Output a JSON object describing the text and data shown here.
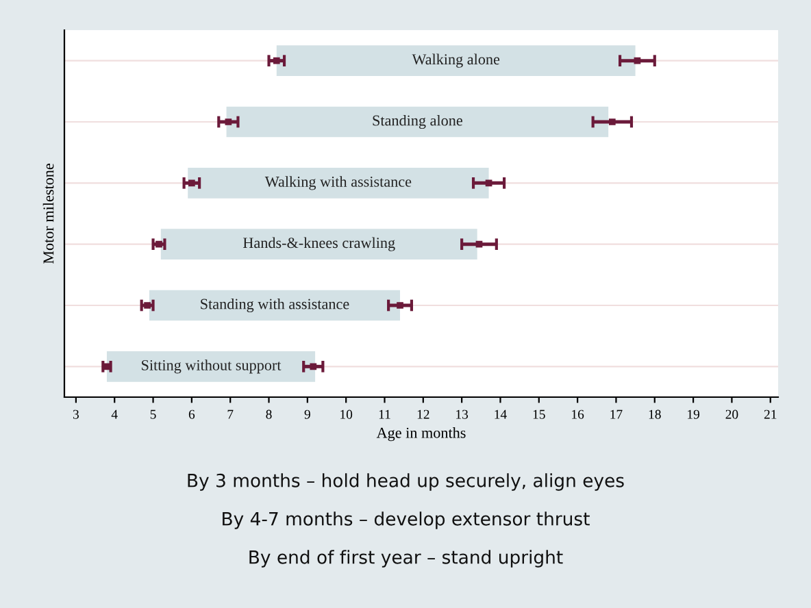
{
  "chart_data": {
    "type": "bar",
    "orientation": "horizontal",
    "xlabel": "Age in months",
    "ylabel": "Motor milestone",
    "categories": [
      "Walking alone",
      "Standing alone",
      "Walking with assistance",
      "Hands-&-knees crawling",
      "Standing with assistance",
      "Sitting without support"
    ],
    "series": [
      {
        "color": "#d3e1e5",
        "base": [
          8.2,
          6.9,
          5.9,
          5.2,
          4.9,
          3.8
        ],
        "values": [
          9.3,
          9.9,
          7.8,
          8.2,
          6.5,
          5.4
        ]
      },
      {
        "type": "scatter",
        "marker": "square",
        "color": "#6b1a3a",
        "values": [
          8.2,
          6.95,
          6.0,
          5.15,
          4.85,
          3.8
        ],
        "errors": [
          [
            8.0,
            8.4
          ],
          [
            6.7,
            7.2
          ],
          [
            5.8,
            6.2
          ],
          [
            5.0,
            5.3
          ],
          [
            4.7,
            5.0
          ],
          [
            3.7,
            3.9
          ]
        ]
      },
      {
        "type": "scatter",
        "marker": "square",
        "color": "#6b1a3a",
        "values": [
          17.55,
          16.9,
          13.7,
          13.45,
          11.4,
          9.15
        ],
        "errors": [
          [
            17.1,
            18.0
          ],
          [
            16.4,
            17.4
          ],
          [
            13.3,
            14.1
          ],
          [
            13.0,
            13.9
          ],
          [
            11.1,
            11.7
          ],
          [
            8.9,
            9.4
          ]
        ]
      }
    ],
    "xlim": [
      2.7,
      21.2
    ],
    "xticks": [
      3,
      4,
      5,
      6,
      7,
      8,
      9,
      10,
      11,
      12,
      13,
      14,
      15,
      16,
      17,
      18,
      19,
      20,
      21
    ],
    "grid": "y",
    "tick_labels": "x",
    "annotations": [
      "By 3 months – hold head up securely, align eyes",
      "By 4-7 months – develop extensor thrust",
      "By end of first year – stand upright"
    ]
  }
}
